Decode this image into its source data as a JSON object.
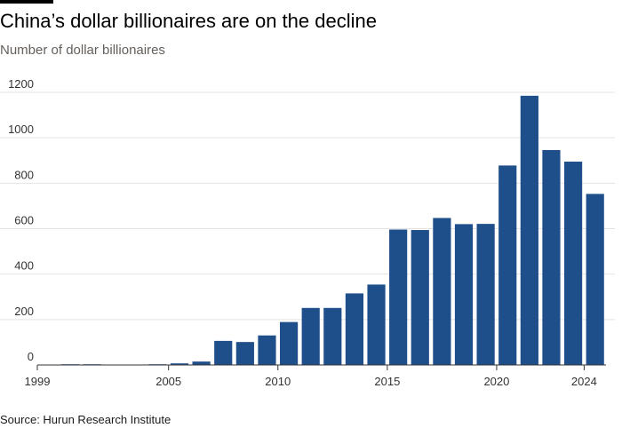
{
  "header": {
    "title": "China’s dollar billionaires are on the decline",
    "subtitle": "Number of dollar billionaires"
  },
  "footer": {
    "source": "Source: Hurun Research Institute"
  },
  "colors": {
    "bar": "#1e4f8a",
    "grid": "#e6e3df",
    "baseline": "#333333",
    "tick_text": "#333333",
    "topbar": "#000000"
  },
  "chart_data": {
    "type": "bar",
    "x": [
      1999,
      2000,
      2001,
      2002,
      2003,
      2004,
      2005,
      2006,
      2007,
      2008,
      2009,
      2010,
      2011,
      2012,
      2013,
      2014,
      2015,
      2016,
      2017,
      2018,
      2019,
      2020,
      2021,
      2022,
      2023,
      2024
    ],
    "values": [
      0,
      1,
      1,
      0,
      0,
      3,
      7,
      15,
      106,
      101,
      130,
      189,
      251,
      251,
      315,
      354,
      596,
      594,
      647,
      620,
      621,
      878,
      1185,
      946,
      895,
      753
    ],
    "x_tick_labels": [
      "1999",
      "2005",
      "2010",
      "2015",
      "2020",
      "2024"
    ],
    "y_ticks": [
      0,
      200,
      400,
      600,
      800,
      1000,
      1200
    ],
    "ylim": [
      0,
      1200
    ],
    "xlabel": "",
    "ylabel": "",
    "grid": true,
    "legend": "none"
  }
}
